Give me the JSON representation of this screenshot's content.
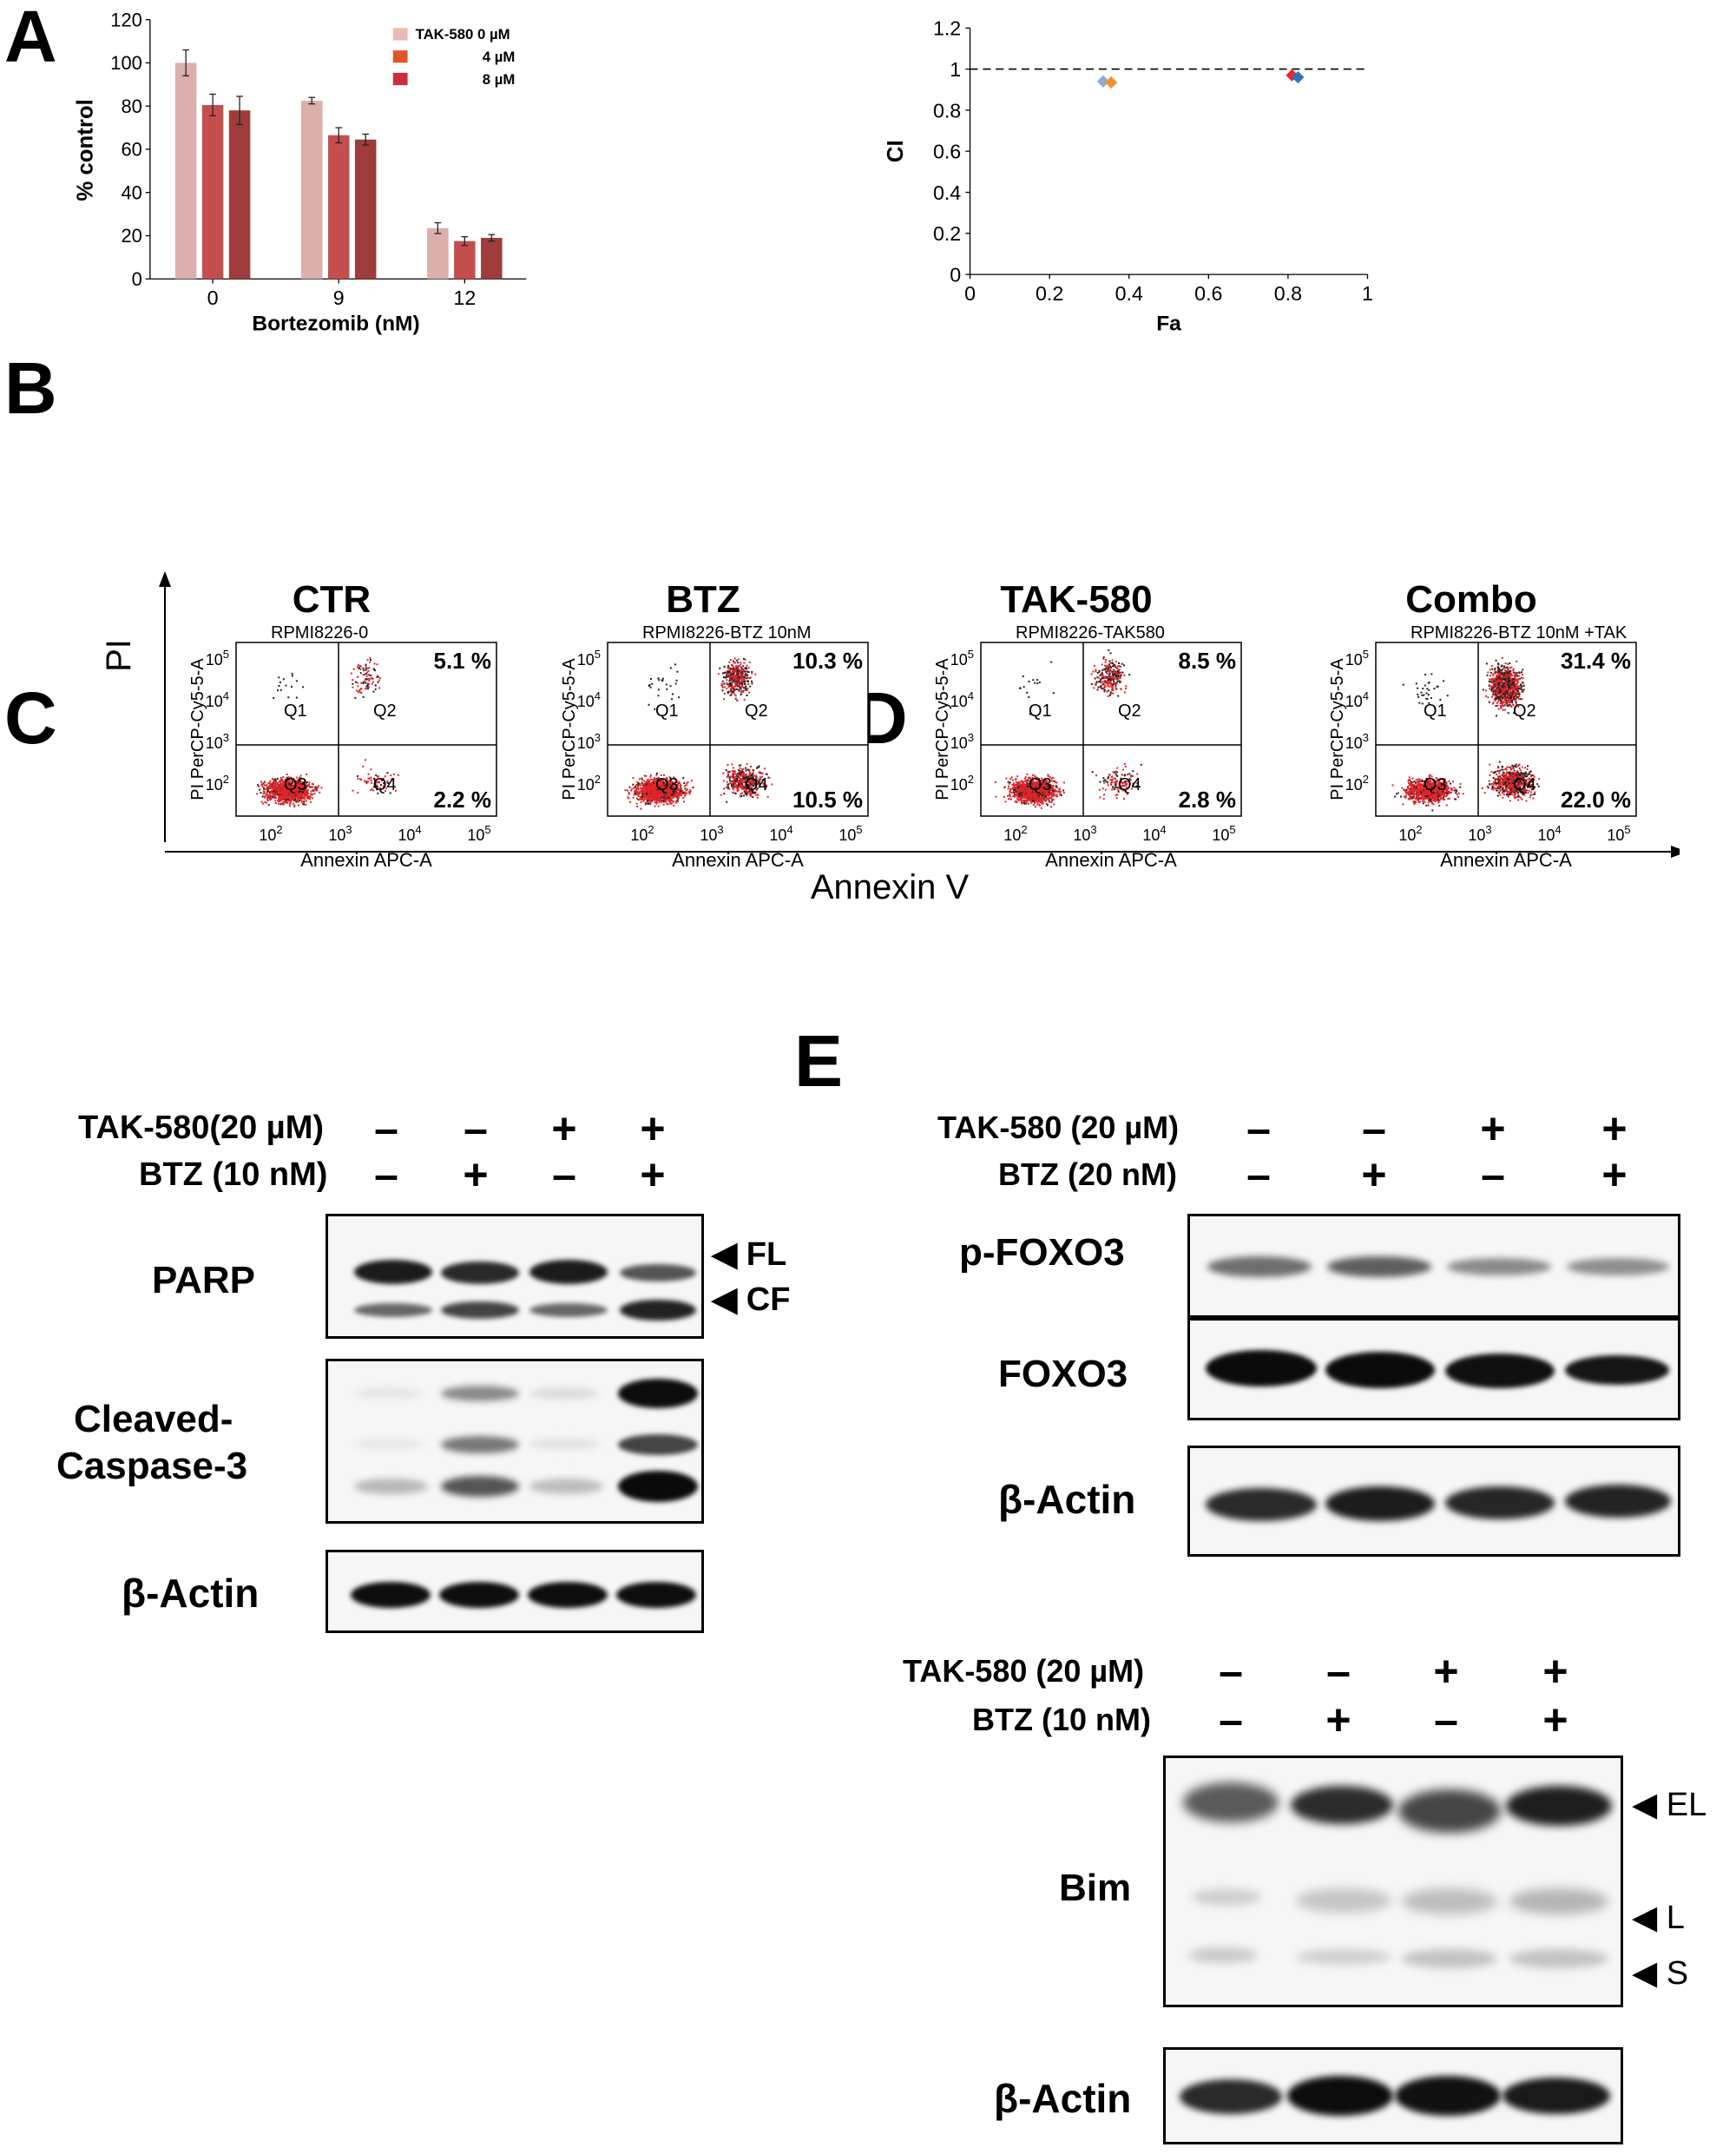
{
  "panels": {
    "A": "A",
    "B": "B",
    "C": "C",
    "D": "D",
    "E": "E"
  },
  "chart_data": [
    {
      "type": "bar",
      "ylabel": "% control",
      "xlabel": "Bortezomib (nM)",
      "categories": [
        "0",
        "9",
        "12"
      ],
      "ylim": [
        0,
        120
      ],
      "yticks": [
        "0",
        "20",
        "40",
        "60",
        "80",
        "100",
        "120"
      ],
      "legend_placement": "top-right",
      "series": [
        {
          "name": "TAK-580 0 µM",
          "values": [
            100,
            82.5,
            23.5
          ],
          "errors": [
            6,
            1.5,
            2.5
          ],
          "color": "#dbafab"
        },
        {
          "name": "4 µM",
          "values": [
            80.5,
            66.5,
            17.5
          ],
          "errors": [
            5,
            3.5,
            2
          ],
          "color": "#c44e4e"
        },
        {
          "name": "8 µM",
          "values": [
            78,
            64.5,
            19
          ],
          "errors": [
            6.5,
            2.5,
            1.5
          ],
          "color": "#9e3c3c"
        }
      ],
      "legend_colors": [
        "#e8b9b6",
        "#e0552a",
        "#cc2d3d"
      ]
    },
    {
      "type": "scatter",
      "xlabel": "Fa",
      "ylabel": "CI",
      "xlim": [
        0,
        1
      ],
      "ylim": [
        0,
        1.2
      ],
      "xticks": [
        "0",
        "0.2",
        "0.4",
        "0.6",
        "0.8",
        "1"
      ],
      "yticks": [
        "0",
        "0.2",
        "0.4",
        "0.6",
        "0.8",
        "1",
        "1.2"
      ],
      "reference_line": {
        "y": 1,
        "style": "dashed"
      },
      "points": [
        {
          "x": 0.335,
          "y": 0.94,
          "color": "#8fa9d6"
        },
        {
          "x": 0.355,
          "y": 0.935,
          "color": "#f0932b"
        },
        {
          "x": 0.81,
          "y": 0.97,
          "color": "#e8262a"
        },
        {
          "x": 0.825,
          "y": 0.96,
          "color": "#2f6fc4"
        }
      ]
    }
  ],
  "flow": {
    "y_axis": "PI",
    "x_axis": "Annexin V",
    "plots": [
      {
        "title": "CTR",
        "subtitle": "RPMI8226-0",
        "q2": "5.1 %",
        "q4": "2.2 %"
      },
      {
        "title": "BTZ",
        "subtitle": "RPMI8226-BTZ 10nM",
        "q2": "10.3 %",
        "q4": "10.5 %"
      },
      {
        "title": "TAK-580",
        "subtitle": "RPMI8226-TAK580",
        "q2": "8.5 %",
        "q4": "2.8 %"
      },
      {
        "title": "Combo",
        "subtitle": "RPMI8226-BTZ 10nM +TAK",
        "q2": "31.4 %",
        "q4": "22.0 %"
      }
    ],
    "inner_ylabel": "PI PerCP-Cy5-5-A",
    "inner_xlabel": "Annexin APC-A",
    "quadrants": [
      "Q1",
      "Q2",
      "Q3",
      "Q4"
    ],
    "tick_exps": [
      "2",
      "3",
      "4",
      "5"
    ]
  },
  "blots": {
    "C": {
      "treat1": "TAK-580(20 µM)",
      "treat2": "BTZ (10 nM)",
      "row1": [
        "–",
        "–",
        "+",
        "+"
      ],
      "row2": [
        "–",
        "+",
        "–",
        "+"
      ],
      "labels": {
        "parp": "PARP",
        "casp_l1": "Cleaved-",
        "casp_l2": "Caspase-3",
        "actin": "β-Actin"
      },
      "arrows": {
        "fl": "◀ FL",
        "cf": "◀ CF"
      }
    },
    "D": {
      "treat1": "TAK-580 (20 µM)",
      "treat2": "BTZ (20 nM)",
      "row1": [
        "–",
        "–",
        "+",
        "+"
      ],
      "row2": [
        "–",
        "+",
        "–",
        "+"
      ],
      "labels": {
        "pfoxo": "p-FOXO3",
        "foxo": "FOXO3",
        "actin": "β-Actin"
      }
    },
    "E": {
      "treat1": "TAK-580 (20 µM)",
      "treat2": "BTZ (10 nM)",
      "row1": [
        "–",
        "–",
        "+",
        "+"
      ],
      "row2": [
        "–",
        "+",
        "–",
        "+"
      ],
      "labels": {
        "bim": "Bim",
        "actin": "β-Actin"
      },
      "arrows": {
        "el": "◀ EL",
        "l": "◀ L",
        "s": "◀ S"
      }
    }
  }
}
